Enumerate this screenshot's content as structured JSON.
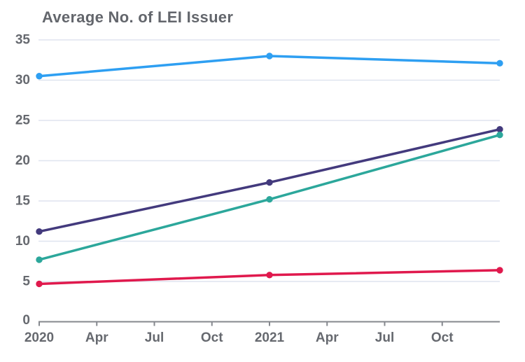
{
  "chart_data": {
    "type": "line",
    "title": "Average No. of LEI Issuer",
    "x_axis": {
      "tick_labels": [
        "2020",
        "Apr",
        "Jul",
        "Oct",
        "2021",
        "Apr",
        "Jul",
        "Oct"
      ],
      "tick_months": [
        0,
        3,
        6,
        9,
        12,
        15,
        18,
        21
      ],
      "range_months": [
        0,
        24
      ]
    },
    "y_axis": {
      "tick_labels": [
        "0",
        "5",
        "10",
        "15",
        "20",
        "25",
        "30",
        "35"
      ],
      "ticks": [
        0,
        5,
        10,
        15,
        20,
        25,
        30,
        35
      ],
      "range": [
        0,
        35
      ]
    },
    "point_months": [
      0,
      12,
      24
    ],
    "series": [
      {
        "name": "line-1",
        "color": "#2e9ff2",
        "values": [
          30.5,
          33.0,
          32.1
        ]
      },
      {
        "name": "line-2",
        "color": "#433a7d",
        "values": [
          11.2,
          17.3,
          23.9
        ]
      },
      {
        "name": "line-3",
        "color": "#2ca79b",
        "values": [
          7.7,
          15.2,
          23.2
        ]
      },
      {
        "name": "line-4",
        "color": "#e0194d",
        "values": [
          4.7,
          5.8,
          6.4
        ]
      }
    ],
    "grid": true,
    "legend": "none",
    "marker": "circle"
  },
  "style_colors": {
    "title_text": "#63666c",
    "tick_text": "#66696f",
    "gridline": "#dfe4ef",
    "axis_line": "#85888e"
  }
}
